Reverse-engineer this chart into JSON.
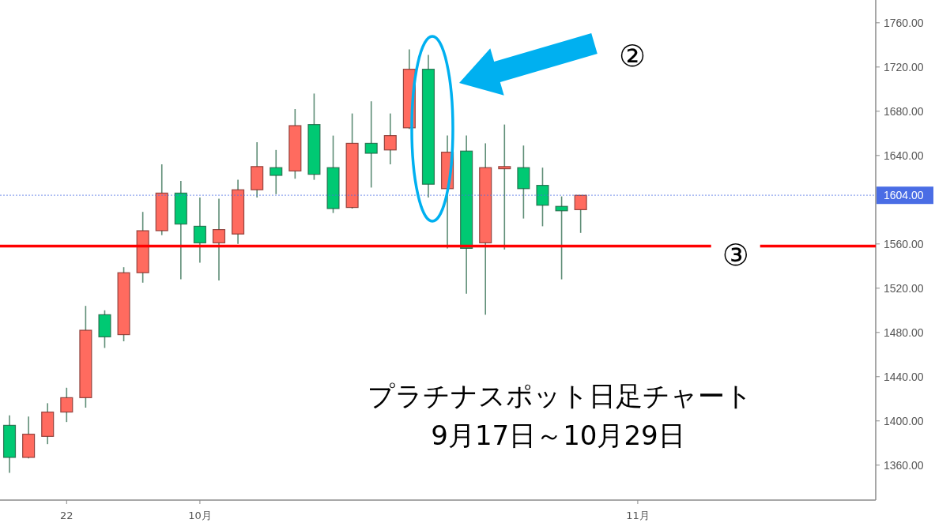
{
  "chart_data": {
    "type": "candlestick",
    "title": "プラチナスポット日足チャート",
    "subtitle": "9月17日～10月29日",
    "categories": [
      null,
      null,
      null,
      "22",
      null,
      null,
      null,
      null,
      null,
      null,
      "10月",
      null,
      null,
      null,
      null,
      null,
      null,
      null,
      null,
      null,
      null,
      null,
      null,
      null,
      null,
      null,
      null,
      null,
      null,
      null,
      null,
      null,
      null,
      "11月",
      null,
      null,
      null,
      null,
      null,
      null,
      null,
      null,
      null,
      null,
      null,
      null
    ],
    "ohlc": [
      [
        1396,
        1405,
        1353,
        1367
      ],
      [
        1367,
        1404,
        1366,
        1388
      ],
      [
        1386,
        1416,
        1379,
        1408
      ],
      [
        1408,
        1430,
        1399,
        1421
      ],
      [
        1421,
        1504,
        1412,
        1482
      ],
      [
        1496,
        1500,
        1466,
        1476
      ],
      [
        1478,
        1539,
        1472,
        1534
      ],
      [
        1534,
        1589,
        1525,
        1572
      ],
      [
        1572,
        1632,
        1568,
        1606
      ],
      [
        1606,
        1617,
        1528,
        1578
      ],
      [
        1576,
        1602,
        1543,
        1561
      ],
      [
        1561,
        1601,
        1527,
        1573
      ],
      [
        1569,
        1618,
        1560,
        1609
      ],
      [
        1609,
        1652,
        1602,
        1630
      ],
      [
        1629,
        1645,
        1605,
        1622
      ],
      [
        1626,
        1682,
        1619,
        1667
      ],
      [
        1668,
        1696,
        1618,
        1623
      ],
      [
        1629,
        1658,
        1588,
        1592
      ],
      [
        1593,
        1678,
        1592,
        1651
      ],
      [
        1651,
        1689,
        1611,
        1642
      ],
      [
        1645,
        1678,
        1632,
        1658
      ],
      [
        1665,
        1736,
        1664,
        1718
      ],
      [
        1718,
        1731,
        1602,
        1614
      ],
      [
        1610,
        1658,
        1556,
        1643
      ],
      [
        1644,
        1658,
        1515,
        1556
      ],
      [
        1561,
        1651,
        1496,
        1629
      ],
      [
        1628,
        1668,
        1555,
        1630
      ],
      [
        1629,
        1649,
        1583,
        1610
      ],
      [
        1613,
        1629,
        1576,
        1595
      ],
      [
        1594,
        1603,
        1528,
        1590
      ],
      [
        1591,
        1604,
        1570,
        1604
      ],
      null,
      null,
      null,
      null,
      null,
      null,
      null,
      null,
      null,
      null,
      null,
      null,
      null,
      null,
      null
    ],
    "colors": [
      "#00c973",
      "#ff6b5f",
      "#ff6b5f",
      "#ff6b5f",
      "#ff6b5f",
      "#00c973",
      "#ff6b5f",
      "#ff6b5f",
      "#ff6b5f",
      "#00c973",
      "#00c973",
      "#ff6b5f",
      "#ff6b5f",
      "#ff6b5f",
      "#00c973",
      "#ff6b5f",
      "#00c973",
      "#00c973",
      "#ff6b5f",
      "#00c973",
      "#ff6b5f",
      "#ff6b5f",
      "#00c973",
      "#ff6b5f",
      "#00c973",
      "#ff6b5f",
      "#ff6b5f",
      "#00c973",
      "#00c973",
      "#00c973",
      "#ff6b5f",
      null,
      null,
      null,
      null,
      null,
      null,
      null,
      null,
      null,
      null,
      null,
      null,
      null,
      null,
      null
    ],
    "ylim": [
      1328.4,
      1780.6
    ],
    "yticks": [
      {
        "value": 1360,
        "label": "1360.00"
      },
      {
        "value": 1400,
        "label": "1400.00"
      },
      {
        "value": 1440,
        "label": "1440.00"
      },
      {
        "value": 1480,
        "label": "1480.00"
      },
      {
        "value": 1520,
        "label": "1520.00"
      },
      {
        "value": 1560,
        "label": "1560.00"
      },
      {
        "value": 1640,
        "label": "1640.00"
      },
      {
        "value": 1680,
        "label": "1680.00"
      },
      {
        "value": 1720,
        "label": "1720.00"
      },
      {
        "value": 1760,
        "label": "1760.00"
      }
    ],
    "ref_lines": [
      {
        "axis": "y",
        "value": 1604,
        "label": "1604.00",
        "color": "#4a6de5",
        "line_style": "dotted"
      },
      {
        "axis": "y",
        "value": 1558,
        "label": "③",
        "color": "#ff0000",
        "line_style": "solid"
      }
    ],
    "annotations": [
      "②"
    ]
  }
}
